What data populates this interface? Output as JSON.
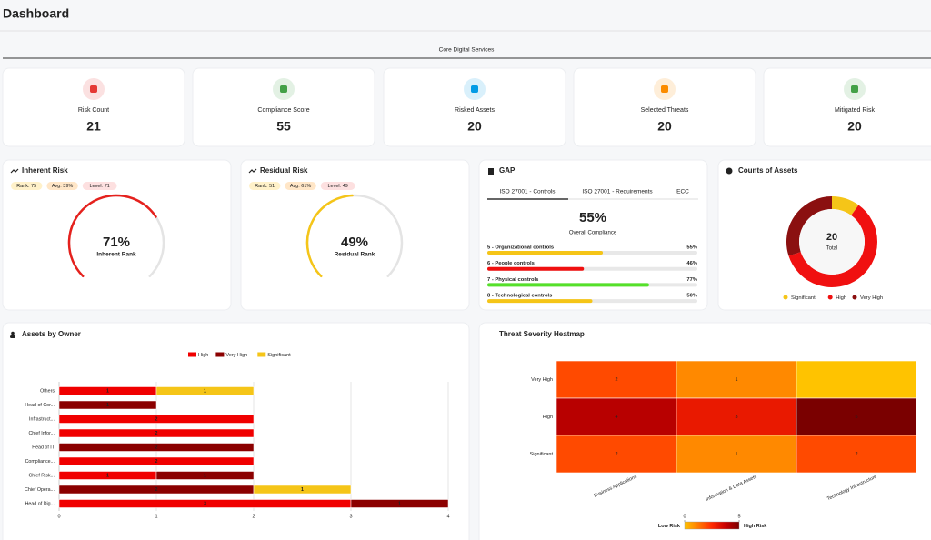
{
  "header": {
    "title": "Dashboard",
    "tab": "Core Digital Services"
  },
  "kpis": [
    {
      "label": "Risk Count",
      "value": 21,
      "color": "#e53935"
    },
    {
      "label": "Compliance Score",
      "value": 55,
      "color": "#43a047"
    },
    {
      "label": "Risked Assets",
      "value": 20,
      "color": "#039be5"
    },
    {
      "label": "Selected Threats",
      "value": 20,
      "color": "#fb8c00"
    },
    {
      "label": "Mitigated Risk",
      "value": 20,
      "color": "#43a047"
    }
  ],
  "inherent_risk": {
    "title": "Inherent Risk",
    "badges": [
      "Rank: 75",
      "Avg: 39%",
      "Level: 71"
    ],
    "chart_data": {
      "type": "gauge",
      "value": 71,
      "value_label": "71%",
      "label": "Inherent Rank",
      "color": "#e5211d",
      "ylim": [
        0,
        100
      ]
    }
  },
  "residual_risk": {
    "title": "Residual Risk",
    "badges": [
      "Rank: 51",
      "Avg: 61%",
      "Level: 49"
    ],
    "chart_data": {
      "type": "gauge",
      "value": 49,
      "value_label": "49%",
      "label": "Residual Rank",
      "color": "#f5c518",
      "ylim": [
        0,
        100
      ]
    }
  },
  "gap": {
    "title": "GAP",
    "tabs": [
      "ISO 27001 - Controls",
      "ISO 27001 - Requirements",
      "ECC"
    ],
    "overall": {
      "value": 55,
      "value_label": "55%",
      "label": "Overall Compliance"
    },
    "xlim": [
      0,
      100
    ],
    "items": [
      {
        "label": "5 - Organizational controls",
        "value": 55,
        "value_label": "55%",
        "color": "#f5c518"
      },
      {
        "label": "6 - People controls",
        "value": 46,
        "value_label": "46%",
        "color": "#f01010"
      },
      {
        "label": "7 - Physical controls",
        "value": 77,
        "value_label": "77%",
        "color": "#55e02a"
      },
      {
        "label": "8 - Technological controls",
        "value": 50,
        "value_label": "50%",
        "color": "#f5c518"
      }
    ]
  },
  "counts_of_assets": {
    "title": "Counts of Assets",
    "chart_data": {
      "type": "donut",
      "total": 20,
      "total_label": "Total",
      "categories": [
        "Significant",
        "High",
        "Very High"
      ],
      "values": [
        2,
        12,
        6
      ],
      "colors": [
        "#f5c518",
        "#f01010",
        "#8b1010"
      ]
    }
  },
  "assets_by_owner": {
    "title": "Assets by Owner",
    "chart_data": {
      "type": "hbar-stacked",
      "categories": [
        "Others",
        "Head of Cor...",
        "Infrastruct...",
        "Chief Infor...",
        "Head of IT",
        "Compliance...",
        "Chief Risk...",
        "Chief Opera...",
        "Head of Dig..."
      ],
      "series": [
        {
          "name": "High",
          "color": "#f00000",
          "values": [
            1,
            0,
            2,
            2,
            0,
            2,
            1,
            0,
            3
          ]
        },
        {
          "name": "Very High",
          "color": "#8b0000",
          "values": [
            0,
            1,
            0,
            0,
            2,
            0,
            1,
            2,
            1
          ]
        },
        {
          "name": "Significant",
          "color": "#f5c518",
          "values": [
            1,
            0,
            0,
            0,
            0,
            0,
            0,
            1,
            0
          ]
        }
      ],
      "xlim": [
        0,
        4
      ],
      "xticks": [
        0,
        1,
        2,
        3,
        4
      ],
      "grid": true
    }
  },
  "heatmap": {
    "title": "Threat Severity Heatmap",
    "chart_data": {
      "type": "heatmap",
      "rows": [
        "Very High",
        "High",
        "Significant"
      ],
      "columns": [
        "Business Applications",
        "Information & Data Assets",
        "Technology Infrastructure"
      ],
      "values": [
        [
          2,
          1,
          0
        ],
        [
          4,
          3,
          5
        ],
        [
          2,
          1,
          2
        ]
      ],
      "zlim": [
        0,
        5
      ],
      "zticks": [
        0,
        5
      ],
      "colorscale": [
        "#ffc300",
        "#ff7a00",
        "#ff2a00",
        "#c80000",
        "#7a0000"
      ],
      "low_label": "Low Risk",
      "high_label": "High Risk"
    }
  }
}
